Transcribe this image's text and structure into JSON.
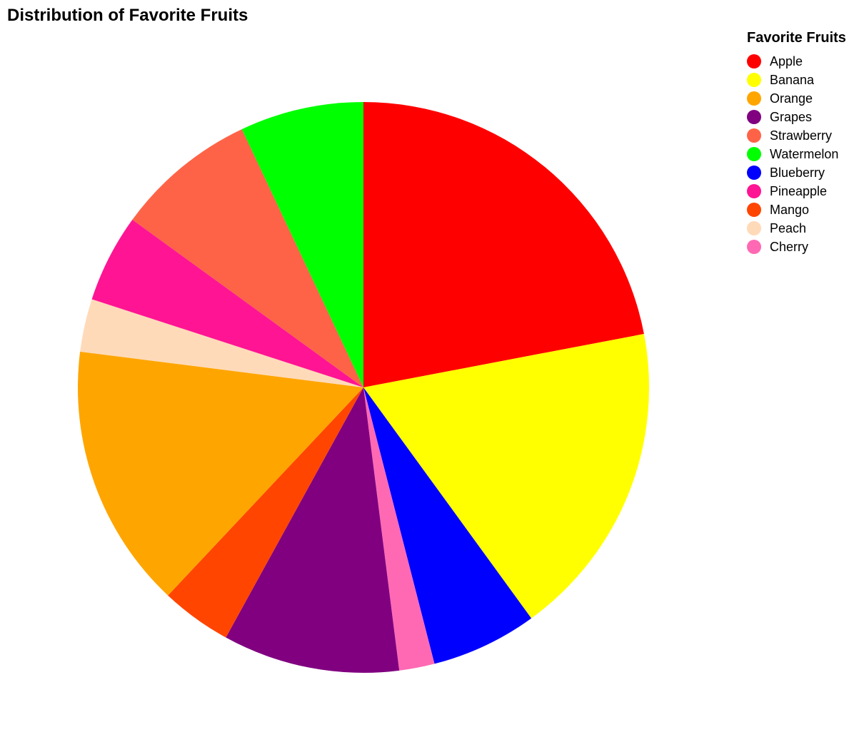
{
  "chart_data": {
    "type": "pie",
    "title": "Distribution of Favorite Fruits",
    "legend_title": "Favorite Fruits",
    "legend_position": "top-right",
    "categories": [
      "Apple",
      "Banana",
      "Orange",
      "Grapes",
      "Strawberry",
      "Watermelon",
      "Blueberry",
      "Pineapple",
      "Mango",
      "Peach",
      "Cherry"
    ],
    "values": [
      22,
      18,
      15,
      10,
      8,
      7,
      6,
      5,
      4,
      3,
      2
    ],
    "colors": [
      "#ff0000",
      "#ffff00",
      "#ffa500",
      "#800080",
      "#ff6347",
      "#00ff00",
      "#0000ff",
      "#ff1493",
      "#ff4500",
      "#ffdab9",
      "#ff69b4"
    ],
    "slice_order": [
      "Apple",
      "Banana",
      "Blueberry",
      "Cherry",
      "Grapes",
      "Mango",
      "Orange",
      "Peach",
      "Pineapple",
      "Strawberry",
      "Watermelon"
    ]
  }
}
